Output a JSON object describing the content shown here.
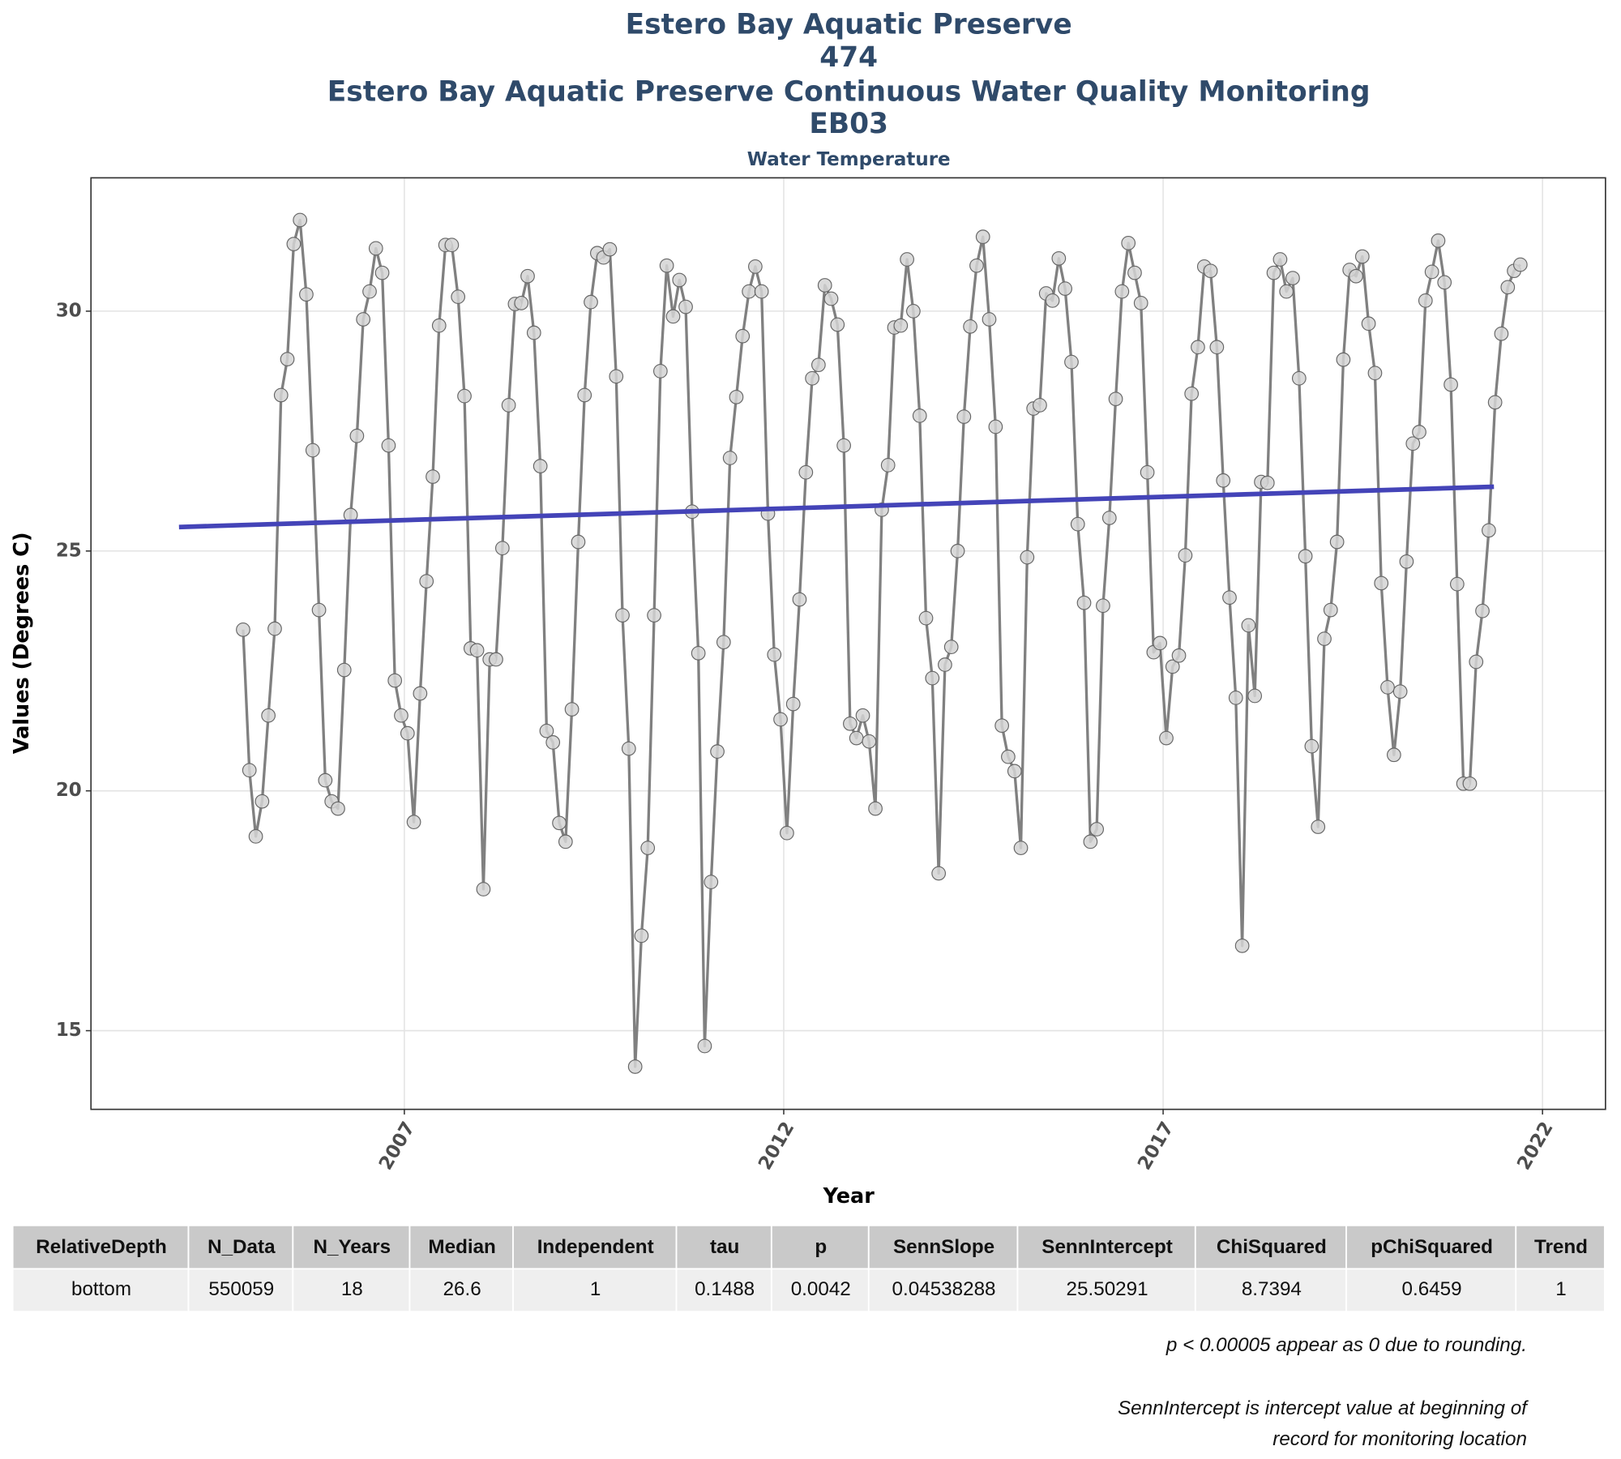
{
  "chart_data": {
    "type": "line",
    "title": [
      "Estero Bay Aquatic Preserve",
      "474",
      "Estero Bay Aquatic Preserve Continuous Water Quality Monitoring",
      "EB03"
    ],
    "subtitle": "Water Temperature",
    "x_label": "Year",
    "y_label": "Values (Degrees C)",
    "xlim": [
      2002.87,
      2022.83
    ],
    "xticks": [
      2007,
      2012,
      2017,
      2022
    ],
    "ylim": [
      13.36,
      32.78
    ],
    "yticks": [
      15,
      20,
      25,
      30
    ],
    "grid": true,
    "color": "#808080",
    "marker_color": "#d3d3d3",
    "x": [
      2004.875,
      2004.958,
      2005.042,
      2005.125,
      2005.208,
      2005.292,
      2005.375,
      2005.458,
      2005.542,
      2005.625,
      2005.708,
      2005.792,
      2005.875,
      2005.958,
      2006.042,
      2006.125,
      2006.208,
      2006.292,
      2006.375,
      2006.458,
      2006.542,
      2006.625,
      2006.708,
      2006.792,
      2006.875,
      2006.958,
      2007.042,
      2007.125,
      2007.208,
      2007.292,
      2007.375,
      2007.458,
      2007.542,
      2007.625,
      2007.708,
      2007.792,
      2007.875,
      2007.958,
      2008.042,
      2008.125,
      2008.208,
      2008.292,
      2008.375,
      2008.458,
      2008.542,
      2008.625,
      2008.708,
      2008.792,
      2008.875,
      2008.958,
      2009.042,
      2009.125,
      2009.208,
      2009.292,
      2009.375,
      2009.458,
      2009.542,
      2009.625,
      2009.708,
      2009.792,
      2009.875,
      2009.958,
      2010.042,
      2010.125,
      2010.208,
      2010.292,
      2010.375,
      2010.458,
      2010.542,
      2010.625,
      2010.708,
      2010.792,
      2010.875,
      2010.958,
      2011.042,
      2011.125,
      2011.208,
      2011.292,
      2011.375,
      2011.458,
      2011.542,
      2011.625,
      2011.708,
      2011.792,
      2011.875,
      2011.958,
      2012.042,
      2012.125,
      2012.208,
      2012.292,
      2012.375,
      2012.458,
      2012.542,
      2012.625,
      2012.708,
      2012.792,
      2012.875,
      2012.958,
      2013.042,
      2013.125,
      2013.208,
      2013.292,
      2013.375,
      2013.458,
      2013.542,
      2013.625,
      2013.708,
      2013.792,
      2013.875,
      2013.958,
      2014.042,
      2014.125,
      2014.208,
      2014.292,
      2014.375,
      2014.458,
      2014.542,
      2014.625,
      2014.708,
      2014.792,
      2014.875,
      2014.958,
      2015.042,
      2015.125,
      2015.208,
      2015.292,
      2015.375,
      2015.458,
      2015.542,
      2015.625,
      2015.708,
      2015.792,
      2015.875,
      2015.958,
      2016.042,
      2016.125,
      2016.208,
      2016.292,
      2016.375,
      2016.458,
      2016.542,
      2016.625,
      2016.708,
      2016.792,
      2016.875,
      2016.958,
      2017.042,
      2017.125,
      2017.208,
      2017.292,
      2017.375,
      2017.458,
      2017.542,
      2017.625,
      2017.708,
      2017.792,
      2017.875,
      2017.958,
      2018.042,
      2018.125,
      2018.208,
      2018.292,
      2018.375,
      2018.458,
      2018.542,
      2018.625,
      2018.708,
      2018.792,
      2018.875,
      2018.958,
      2019.042,
      2019.125,
      2019.208,
      2019.292,
      2019.375,
      2019.458,
      2019.542,
      2019.625,
      2019.708,
      2019.792,
      2019.875,
      2019.958,
      2020.042,
      2020.125,
      2020.208,
      2020.292,
      2020.375,
      2020.458,
      2020.542,
      2020.625,
      2020.708,
      2020.792,
      2020.875,
      2020.958,
      2021.042,
      2021.125,
      2021.208,
      2021.292,
      2021.375,
      2021.458,
      2021.542,
      2021.625,
      2021.708
    ],
    "values": [
      23.36,
      20.43,
      19.05,
      19.78,
      21.57,
      23.38,
      28.25,
      29.0,
      31.4,
      31.9,
      30.35,
      27.1,
      23.77,
      20.22,
      19.78,
      19.63,
      22.52,
      25.75,
      27.4,
      29.83,
      30.41,
      31.31,
      30.8,
      27.2,
      22.3,
      21.57,
      21.2,
      19.35,
      22.03,
      24.37,
      26.55,
      29.7,
      31.38,
      31.38,
      30.3,
      28.23,
      22.97,
      22.93,
      17.95,
      22.74,
      22.74,
      25.06,
      28.04,
      30.15,
      30.17,
      30.73,
      29.55,
      26.77,
      21.25,
      21.01,
      19.33,
      18.94,
      21.7,
      25.19,
      28.25,
      30.19,
      31.21,
      31.12,
      31.29,
      28.64,
      23.66,
      20.88,
      14.25,
      16.98,
      18.81,
      23.66,
      28.75,
      30.95,
      29.89,
      30.65,
      30.09,
      25.82,
      22.87,
      14.68,
      18.1,
      20.82,
      23.1,
      26.94,
      28.21,
      29.48,
      30.41,
      30.93,
      30.41,
      25.78,
      22.84,
      21.49,
      19.12,
      21.81,
      23.99,
      26.64,
      28.6,
      28.88,
      30.54,
      30.26,
      29.72,
      27.2,
      21.4,
      21.1,
      21.57,
      21.03,
      19.63,
      25.86,
      26.79,
      29.66,
      29.7,
      31.08,
      30.0,
      27.82,
      23.6,
      22.35,
      18.28,
      22.63,
      23.0,
      25.0,
      27.8,
      29.68,
      30.95,
      31.55,
      29.83,
      27.59,
      21.36,
      20.71,
      20.41,
      18.81,
      24.87,
      27.97,
      28.04,
      30.37,
      30.22,
      31.1,
      30.47,
      28.94,
      25.56,
      23.92,
      18.94,
      19.2,
      23.86,
      25.69,
      28.17,
      30.41,
      31.42,
      30.8,
      30.17,
      26.64,
      22.89,
      23.08,
      21.1,
      22.59,
      22.82,
      24.91,
      28.28,
      29.25,
      30.93,
      30.84,
      29.25,
      26.47,
      24.03,
      21.94,
      16.77,
      23.45,
      21.98,
      26.44,
      26.42,
      30.8,
      31.08,
      30.41,
      30.69,
      28.6,
      24.89,
      20.93,
      19.25,
      23.17,
      23.77,
      25.19,
      28.99,
      30.86,
      30.73,
      31.14,
      29.74,
      28.71,
      24.33,
      22.16,
      20.75,
      22.07,
      24.78,
      27.24,
      27.48,
      30.22,
      30.82,
      31.47,
      30.6,
      28.47,
      24.31,
      20.15,
      20.15,
      22.69,
      23.75,
      25.43,
      28.1,
      29.53,
      30.5,
      30.84,
      30.97
    ],
    "trend": {
      "x": [
        2004.03,
        2021.36
      ],
      "values": [
        25.5,
        26.34
      ],
      "color": "#4444b8"
    }
  },
  "table": {
    "header": [
      "RelativeDepth",
      "N_Data",
      "N_Years",
      "Median",
      "Independent",
      "tau",
      "p",
      "SennSlope",
      "SennIntercept",
      "ChiSquared",
      "pChiSquared",
      "Trend"
    ],
    "rows": [
      [
        "bottom",
        550059,
        18,
        26.6,
        1,
        0.1488,
        0.0042,
        0.04538288,
        25.50291,
        8.7394,
        0.6459,
        1
      ]
    ]
  },
  "notes": [
    "p < 0.00005 appear as 0 due to rounding.",
    "SennIntercept is intercept value at beginning of",
    "record for monitoring location"
  ]
}
